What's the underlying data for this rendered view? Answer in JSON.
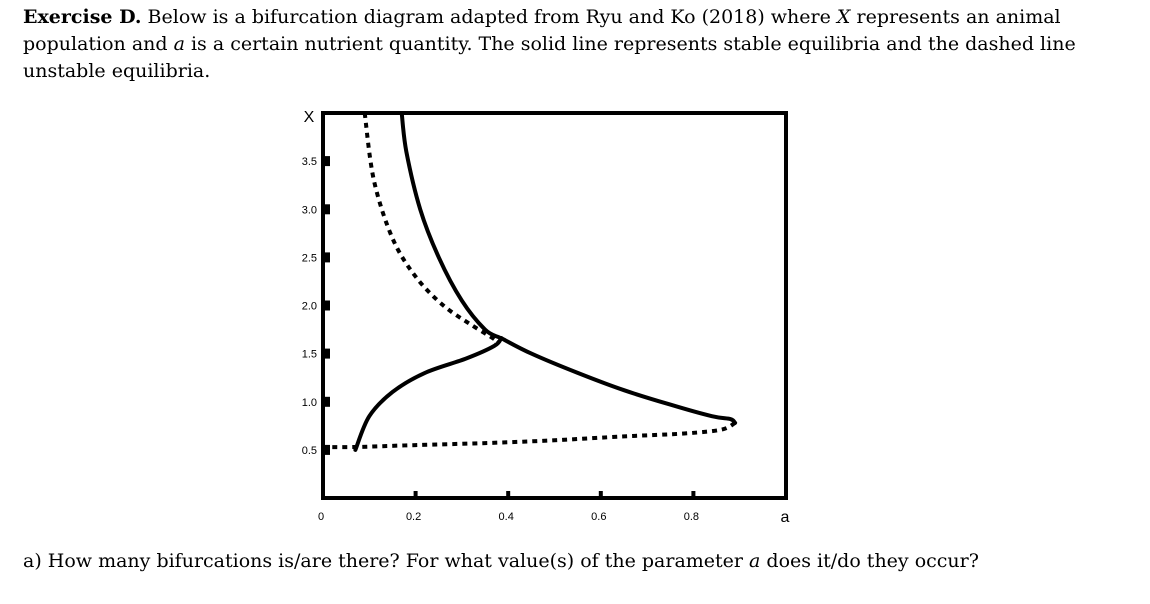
{
  "intro": {
    "lead": "Exercise D.",
    "t1": " Below is a bifurcation diagram adapted from Ryu and Ko (2018) where ",
    "var_x": "X",
    "t2": " represents an animal population and ",
    "var_a": "a",
    "t3": " is a certain nutrient quantity. The solid line represents stable equilibria and the dashed line unstable equilibria."
  },
  "question": {
    "t1": "a) How many bifurcations is/are there? For what value(s) of the parameter ",
    "var_a": "a",
    "t2": " does it/do they occur?"
  },
  "chart_data": {
    "type": "line",
    "title": "",
    "xlabel": "a",
    "ylabel": "X",
    "xlim": [
      0,
      1.0
    ],
    "ylim": [
      0,
      4.0
    ],
    "x_ticks": [
      {
        "value": 0,
        "label": "0"
      },
      {
        "value": 0.2,
        "label": "0.2"
      },
      {
        "value": 0.4,
        "label": "0.4"
      },
      {
        "value": 0.6,
        "label": "0.6"
      },
      {
        "value": 0.8,
        "label": "0.8"
      }
    ],
    "y_ticks": [
      {
        "value": 0.5,
        "label": "0.5"
      },
      {
        "value": 1.0,
        "label": "1.0"
      },
      {
        "value": 1.5,
        "label": "1.5"
      },
      {
        "value": 2.0,
        "label": "2.0"
      },
      {
        "value": 2.5,
        "label": "2.5"
      },
      {
        "value": 3.0,
        "label": "3.0"
      },
      {
        "value": 3.5,
        "label": "3.5"
      }
    ],
    "grid": false,
    "series": [
      {
        "style": "solid",
        "stability": "stable",
        "x": [
          0.17,
          0.18,
          0.21,
          0.25,
          0.3,
          0.35,
          0.38,
          0.385
        ],
        "y": [
          4.0,
          3.6,
          3.0,
          2.5,
          2.05,
          1.75,
          1.67,
          1.66
        ]
      },
      {
        "style": "dashed",
        "stability": "unstable",
        "x": [
          0.09,
          0.11,
          0.15,
          0.2,
          0.26,
          0.32,
          0.37,
          0.375,
          0.385
        ],
        "y": [
          4.0,
          3.3,
          2.7,
          2.3,
          2.0,
          1.8,
          1.65,
          1.6,
          1.66
        ]
      },
      {
        "style": "solid",
        "stability": "stable",
        "x": [
          0.07,
          0.1,
          0.15,
          0.22,
          0.31,
          0.37,
          0.385
        ],
        "y": [
          0.5,
          0.85,
          1.1,
          1.3,
          1.45,
          1.58,
          1.66
        ]
      },
      {
        "style": "solid",
        "stability": "stable",
        "x": [
          0.385,
          0.45,
          0.55,
          0.65,
          0.75,
          0.84,
          0.88,
          0.89
        ],
        "y": [
          1.66,
          1.5,
          1.3,
          1.12,
          0.97,
          0.85,
          0.82,
          0.78
        ]
      },
      {
        "style": "dashed",
        "stability": "unstable",
        "x": [
          0.89,
          0.86,
          0.78,
          0.65,
          0.5,
          0.35,
          0.2,
          0.07,
          0.0
        ],
        "y": [
          0.78,
          0.71,
          0.67,
          0.64,
          0.6,
          0.57,
          0.55,
          0.53,
          0.53
        ]
      }
    ]
  }
}
